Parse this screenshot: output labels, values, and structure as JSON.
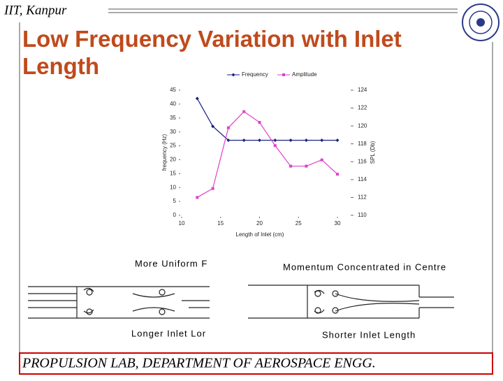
{
  "header": {
    "institute": "IIT, Kanpur"
  },
  "title": "Low Frequency Variation with Inlet Length",
  "chart_data": {
    "type": "line",
    "x_label": "Length of Inlet (cm)",
    "y_label": "frequency (Hz)",
    "y2_label": "SPL (Db)",
    "x": [
      12,
      14,
      16,
      18,
      20,
      22,
      24,
      26,
      28,
      30
    ],
    "series": [
      {
        "name": "Frequency",
        "color": "#1a237e",
        "marker": "diamond",
        "values": [
          42,
          32,
          27,
          27,
          27,
          27,
          27,
          27,
          27,
          27
        ]
      },
      {
        "name": "Amplitude",
        "color": "#e040c8",
        "marker": "square",
        "axis": "y2",
        "values": [
          112,
          113,
          119.8,
          121.6,
          120.4,
          117.8,
          115.5,
          115.5,
          116.2,
          114.6
        ]
      }
    ],
    "xlim": [
      10,
      30
    ],
    "xticks": [
      10,
      15,
      20,
      25,
      30
    ],
    "ylim": [
      0,
      45
    ],
    "yticks": [
      0,
      5,
      10,
      15,
      20,
      25,
      30,
      35,
      40,
      45
    ],
    "y2lim": [
      110,
      124
    ],
    "y2ticks": [
      110,
      112,
      114,
      116,
      118,
      120,
      122,
      124
    ],
    "legend": "top"
  },
  "diagrams": [
    {
      "top": "More Uniform F",
      "bottom": "Longer Inlet Lor"
    },
    {
      "top": "Momentum Concentrated in Centre",
      "bottom": "Shorter Inlet Length"
    }
  ],
  "footer": "PROPULSION LAB, DEPARTMENT OF AEROSPACE ENGG."
}
